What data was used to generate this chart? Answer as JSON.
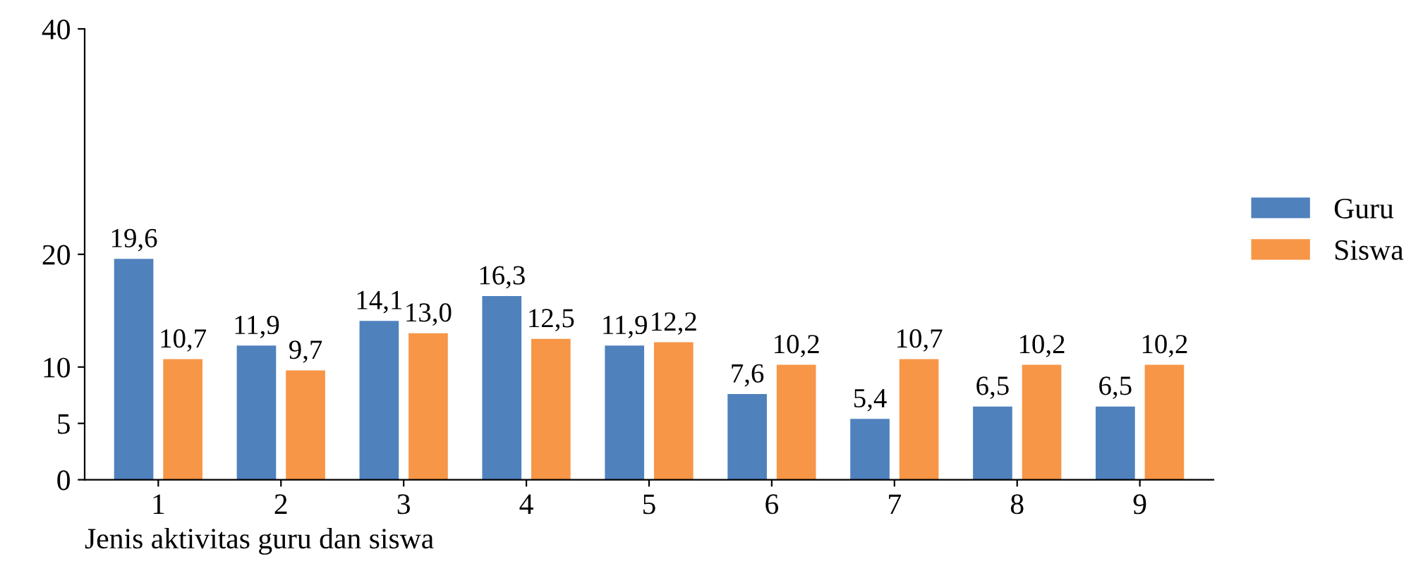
{
  "chart_data": {
    "type": "bar",
    "xlabel": "Jenis aktivitas guru dan siswa",
    "categories": [
      "1",
      "2",
      "3",
      "4",
      "5",
      "6",
      "7",
      "8",
      "9"
    ],
    "series": [
      {
        "name": "Guru",
        "color": "#4f81bd",
        "values": [
          19.6,
          11.9,
          14.1,
          16.3,
          11.9,
          7.6,
          5.4,
          6.5,
          6.5
        ],
        "value_labels": [
          "19,6",
          "11,9",
          "14,1",
          "16,3",
          "11,9",
          "7,6",
          "5,4",
          "6,5",
          "6,5"
        ]
      },
      {
        "name": "Siswa",
        "color": "#f79646",
        "values": [
          10.7,
          9.7,
          13.0,
          12.5,
          12.2,
          10.2,
          10.7,
          10.2,
          10.2
        ],
        "value_labels": [
          "10,7",
          "9,7",
          "13,0",
          "12,5",
          "12,2",
          "10,2",
          "10,7",
          "10,2",
          "10,2"
        ]
      }
    ],
    "ylim": [
      0,
      40
    ],
    "yticks": [
      0,
      5,
      10,
      20,
      40
    ],
    "grid": false,
    "legend": "right"
  }
}
